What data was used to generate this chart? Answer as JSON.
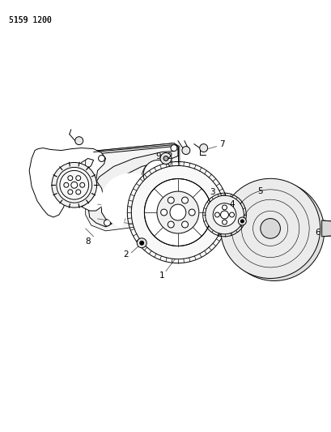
{
  "fig_width": 4.1,
  "fig_height": 5.33,
  "dpi": 100,
  "background_color": "#ffffff",
  "line_color": "#000000",
  "line_width": 0.7,
  "part_number_text": "5159 1200",
  "part_number_fontsize": 7,
  "label_fontsize": 7.5,
  "gray_fill": "#d8d8d8",
  "light_gray": "#eeeeee",
  "mid_gray": "#c8c8c8"
}
